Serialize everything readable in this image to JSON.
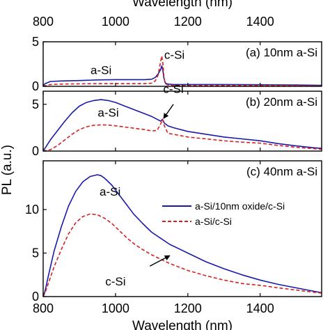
{
  "chart_data": {
    "type": "line",
    "top_xlabel": "Wavelength (nm)",
    "xlabel": "Wavelength (nm)",
    "ylabel": "PL (a.u.)",
    "xlim": [
      800,
      1570
    ],
    "xticks": [
      800,
      1000,
      1200,
      1400
    ],
    "legend": {
      "placement": "right, panel (c)",
      "entries": [
        {
          "label": "a-Si/10nm oxide/c-Si",
          "color": "#1a1aa8",
          "style": "solid"
        },
        {
          "label": "a-Si/c-Si",
          "color": "#d42020",
          "style": "dashed"
        }
      ]
    },
    "series_styles": [
      {
        "color": "#1a1aa8",
        "dash": "none"
      },
      {
        "color": "#d42020",
        "dash": "5,3"
      }
    ],
    "panels": [
      {
        "label": "(a) 10nm a-Si",
        "ylim": [
          0,
          5
        ],
        "yticks": [
          0,
          5
        ],
        "annotations": [
          {
            "text": "a-Si",
            "x": 960,
            "y": 1.35
          },
          {
            "text": "c-Si",
            "x": 1163,
            "y": 3.1
          }
        ],
        "series": [
          {
            "x": [
              800,
              805,
              820,
              850,
              900,
              950,
              1000,
              1050,
              1080,
              1100,
              1110,
              1118,
              1125,
              1128,
              1131,
              1134,
              1138,
              1145,
              1160,
              1200,
              1300,
              1400,
              1500,
              1570
            ],
            "y": [
              0,
              0.3,
              0.55,
              0.6,
              0.65,
              0.72,
              0.75,
              0.75,
              0.75,
              0.8,
              1.0,
              1.4,
              1.9,
              2.3,
              1.8,
              0.9,
              0.35,
              0.25,
              0.2,
              0.2,
              0.2,
              0.18,
              0.15,
              0.12
            ]
          },
          {
            "x": [
              800,
              820,
              850,
              900,
              950,
              1000,
              1050,
              1080,
              1100,
              1110,
              1118,
              1124,
              1128,
              1131,
              1134,
              1138,
              1145,
              1160,
              1200,
              1300,
              1400,
              1500,
              1570
            ],
            "y": [
              0,
              0.2,
              0.25,
              0.28,
              0.3,
              0.3,
              0.3,
              0.3,
              0.35,
              0.6,
              1.3,
              2.6,
              3.4,
              2.6,
              1.0,
              0.3,
              0.15,
              0.1,
              0.1,
              0.1,
              0.1,
              0.08,
              0.05
            ]
          }
        ]
      },
      {
        "label": "(b) 20nm a-Si",
        "ylim": [
          0,
          6.4
        ],
        "yticks": [
          0,
          5
        ],
        "annotations": [
          {
            "text": "a-Si",
            "x": 980,
            "y": 3.7
          },
          {
            "text": "c-Si",
            "x": 1160,
            "y": 6.2
          }
        ],
        "arrow": {
          "from": [
            1160,
            5.0
          ],
          "to": [
            1133,
            3.5
          ]
        },
        "series": [
          {
            "x": [
              800,
              805,
              820,
              840,
              860,
              880,
              900,
              920,
              940,
              960,
              980,
              1000,
              1020,
              1040,
              1060,
              1080,
              1100,
              1115,
              1125,
              1130,
              1135,
              1145,
              1160,
              1200,
              1250,
              1300,
              1350,
              1400,
              1450,
              1500,
              1550,
              1570
            ],
            "y": [
              0,
              0.3,
              1.2,
              2.2,
              3.2,
              4.1,
              4.8,
              5.2,
              5.4,
              5.5,
              5.4,
              5.2,
              4.9,
              4.6,
              4.3,
              4.0,
              3.7,
              3.4,
              3.2,
              3.4,
              3.0,
              2.7,
              2.5,
              2.1,
              1.8,
              1.5,
              1.3,
              1.1,
              0.8,
              0.55,
              0.35,
              0.3
            ]
          },
          {
            "x": [
              800,
              820,
              840,
              860,
              880,
              900,
              920,
              940,
              960,
              980,
              1000,
              1020,
              1040,
              1060,
              1080,
              1100,
              1115,
              1125,
              1130,
              1135,
              1145,
              1160,
              1200,
              1250,
              1300,
              1350,
              1400,
              1450,
              1500,
              1550,
              1570
            ],
            "y": [
              0,
              0.15,
              0.6,
              1.2,
              1.8,
              2.3,
              2.6,
              2.75,
              2.8,
              2.78,
              2.7,
              2.6,
              2.5,
              2.4,
              2.3,
              2.15,
              2.2,
              2.9,
              3.4,
              2.7,
              1.9,
              1.8,
              1.5,
              1.3,
              1.1,
              0.95,
              0.85,
              0.6,
              0.4,
              0.25,
              0.2
            ]
          }
        ]
      },
      {
        "label": "(c) 40nm a-Si",
        "ylim": [
          0,
          15.6
        ],
        "yticks": [
          0,
          5,
          10
        ],
        "annotations": [
          {
            "text": "a-Si",
            "x": 985,
            "y": 11.6
          },
          {
            "text": "c-Si",
            "x": 1000,
            "y": 1.3
          }
        ],
        "arrow": {
          "from": [
            1095,
            3.5
          ],
          "to": [
            1150,
            4.7
          ]
        },
        "series": [
          {
            "x": [
              800,
              805,
              815,
              830,
              850,
              870,
              890,
              910,
              930,
              950,
              960,
              970,
              990,
              1010,
              1030,
              1050,
              1075,
              1100,
              1125,
              1150,
              1200,
              1250,
              1300,
              1350,
              1400,
              1450,
              1500,
              1550,
              1570
            ],
            "y": [
              0,
              0.6,
              2.5,
              5.2,
              8.0,
              10.4,
              12.1,
              13.2,
              13.8,
              14.0,
              13.9,
              13.6,
              12.8,
              11.7,
              10.6,
              9.5,
              8.4,
              7.4,
              6.7,
              6.0,
              5.0,
              4.0,
              3.2,
              2.5,
              1.9,
              1.4,
              1.0,
              0.6,
              0.45
            ]
          },
          {
            "x": [
              800,
              805,
              815,
              830,
              850,
              870,
              890,
              910,
              930,
              950,
              970,
              990,
              1010,
              1030,
              1050,
              1075,
              1100,
              1125,
              1150,
              1200,
              1250,
              1300,
              1350,
              1400,
              1450,
              1500,
              1550,
              1570
            ],
            "y": [
              0,
              0.4,
              1.6,
              3.4,
              5.4,
              7.2,
              8.5,
              9.2,
              9.5,
              9.4,
              9.0,
              8.4,
              7.6,
              6.8,
              6.1,
              5.4,
              4.8,
              4.3,
              3.8,
              3.0,
              2.4,
              1.9,
              1.5,
              1.3,
              1.0,
              0.75,
              0.5,
              0.4
            ]
          }
        ]
      }
    ]
  }
}
